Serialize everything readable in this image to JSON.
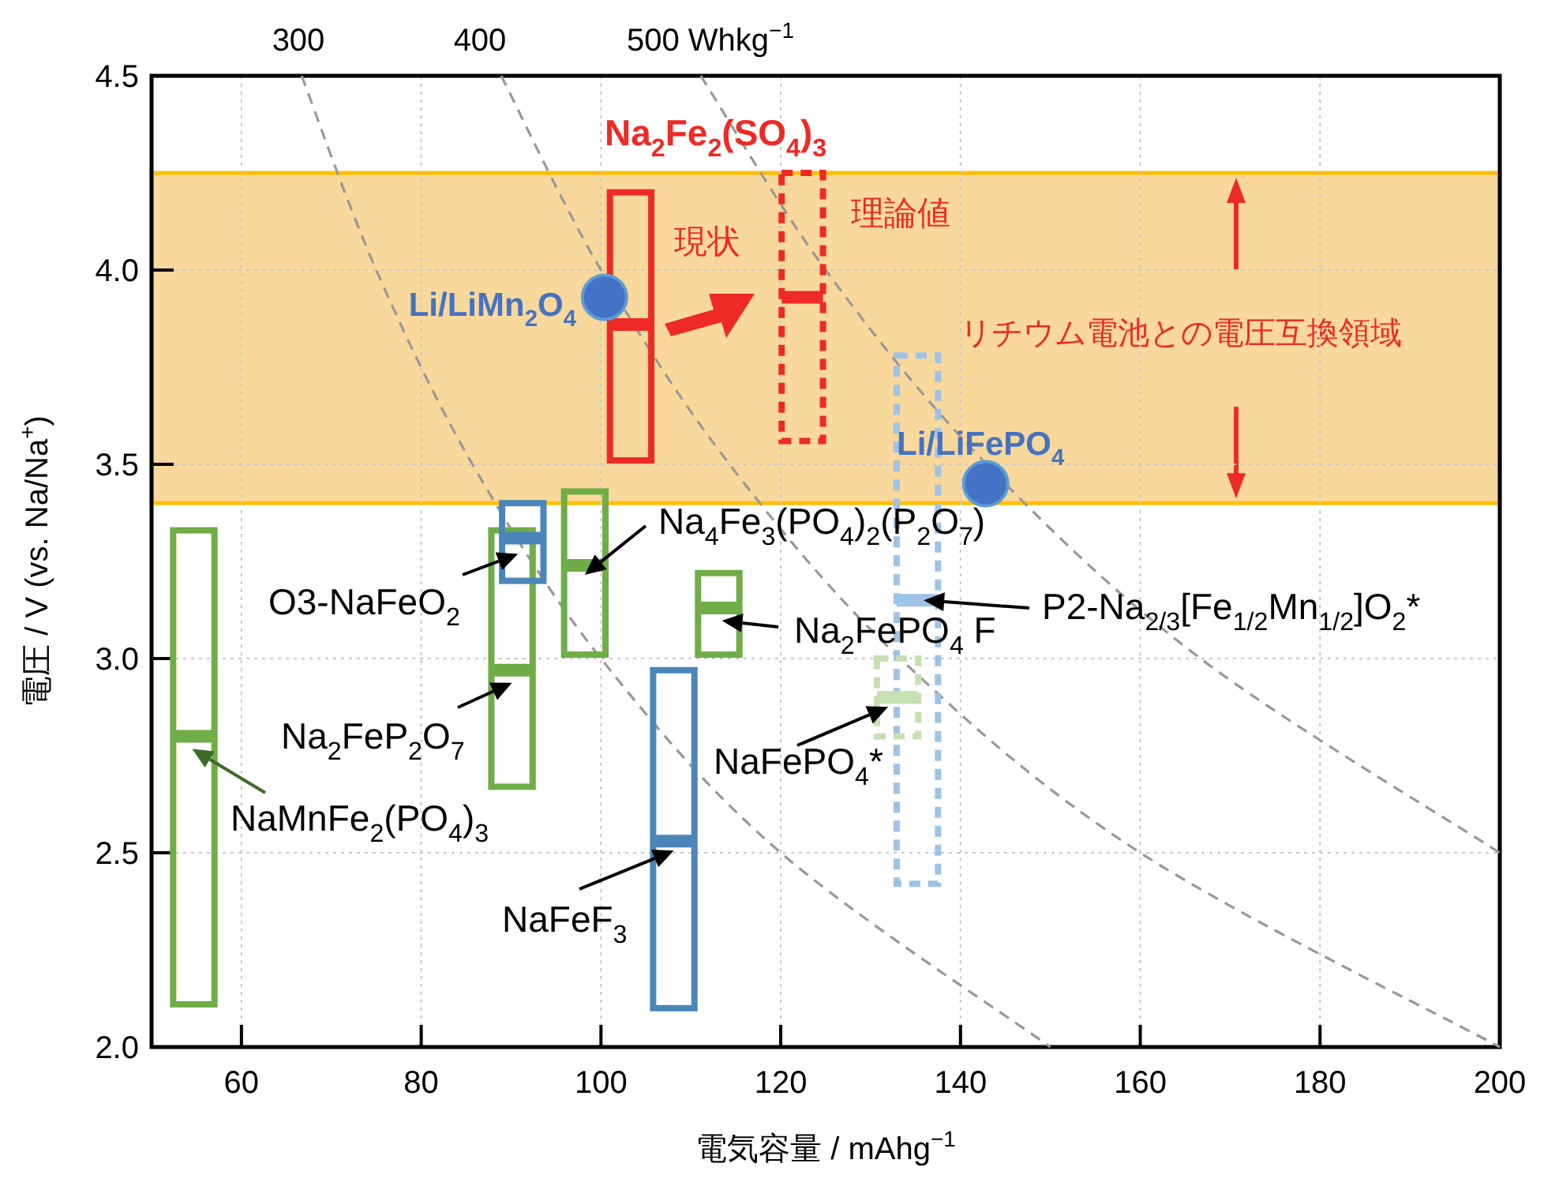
{
  "chart_data": {
    "type": "box",
    "xlabel": "電気容量 / mAhg$^{−1}$",
    "ylabel": "電圧  / V (vs. Na/Na$^{+}$)",
    "xlim": [
      50,
      200
    ],
    "ylim": [
      2.0,
      4.5
    ],
    "xticks": [
      60,
      80,
      100,
      120,
      140,
      160,
      180,
      200
    ],
    "yticks": [
      {
        "value": 2,
        "label": "2.0"
      },
      {
        "value": 2.5,
        "label": "2.5"
      },
      {
        "value": 3,
        "label": "3.0"
      },
      {
        "value": 3.5,
        "label": "3.5"
      },
      {
        "value": 4,
        "label": "4.0"
      },
      {
        "value": 4.5,
        "label": "4.5"
      }
    ],
    "grid": true,
    "bands": [
      {
        "axis": "y",
        "from": 3.4,
        "to": 4.25,
        "label": "リチウム電池との電圧互換領域",
        "color": "#f9d89b"
      }
    ],
    "annotations": [
      "Na$_{2}$Fe$_{2}$(SO$_{4}$)$_{3}$"
    ],
    "series": [
      {
        "type": "line",
        "name": "300",
        "color": "#999999",
        "line_style": "dashed",
        "marker": "none",
        "x": [
          66.7,
          75,
          85.7,
          100,
          120,
          150
        ],
        "values": [
          4.5,
          4.0,
          3.5,
          3.0,
          2.5,
          2.0
        ]
      },
      {
        "type": "line",
        "name": "400",
        "color": "#999999",
        "line_style": "dashed",
        "marker": "none",
        "x": [
          88.9,
          100,
          114.3,
          133.3,
          160,
          200
        ],
        "values": [
          4.5,
          4.0,
          3.5,
          3.0,
          2.5,
          2.0
        ]
      },
      {
        "type": "line",
        "name": "500 Whkg$^{−1}$",
        "color": "#999999",
        "line_style": "dashed",
        "marker": "none",
        "x": [
          111.1,
          125,
          142.9,
          166.7,
          200
        ],
        "values": [
          4.5,
          4.0,
          3.5,
          3.0,
          2.5
        ]
      },
      {
        "type": "box",
        "name": "NaMnFe$_{2}$(PO$_{4}$)$_{3}$",
        "color": "#70ad47",
        "line_style": "solid",
        "x": [
          54.7
        ],
        "boxes": [
          {
            "low": 2.11,
            "q1": 2.11,
            "median": 2.8,
            "q3": 3.33,
            "high": 3.33
          }
        ]
      },
      {
        "type": "box",
        "name": "Na$_{2}$FeP$_{2}$O$_{7}$",
        "color": "#70ad47",
        "line_style": "solid",
        "x": [
          90.1
        ],
        "boxes": [
          {
            "low": 2.67,
            "q1": 2.67,
            "median": 2.97,
            "q3": 3.33,
            "high": 3.33
          }
        ]
      },
      {
        "type": "box",
        "name": "O3-NaFeO$_{2}$",
        "color": "#4a86b8",
        "line_style": "solid",
        "x": [
          91.3
        ],
        "boxes": [
          {
            "low": 3.2,
            "q1": 3.2,
            "median": 3.31,
            "q3": 3.4,
            "high": 3.4
          }
        ]
      },
      {
        "type": "box",
        "name": "Na$_{4}$Fe$_{3}$(PO$_{4}$)$_{2}$(P$_{2}$O$_{7}$)",
        "color": "#70ad47",
        "line_style": "solid",
        "x": [
          98.2
        ],
        "boxes": [
          {
            "low": 3.01,
            "q1": 3.01,
            "median": 3.24,
            "q3": 3.43,
            "high": 3.43
          }
        ]
      },
      {
        "type": "box",
        "name": "Na$_{2}$FePO$_{4}$ F",
        "color": "#70ad47",
        "line_style": "solid",
        "x": [
          113.1
        ],
        "boxes": [
          {
            "low": 3.01,
            "q1": 3.01,
            "median": 3.13,
            "q3": 3.22,
            "high": 3.22
          }
        ]
      },
      {
        "type": "box",
        "name": "NaFeF$_{3}$",
        "color": "#4a86b8",
        "line_style": "solid",
        "x": [
          108.1
        ],
        "boxes": [
          {
            "low": 2.1,
            "q1": 2.1,
            "median": 2.53,
            "q3": 2.97,
            "high": 2.97
          }
        ]
      },
      {
        "type": "box",
        "name": "現状",
        "color": "#ee2a24",
        "line_style": "solid",
        "x": [
          103.3
        ],
        "boxes": [
          {
            "low": 3.51,
            "q1": 3.51,
            "median": 3.86,
            "q3": 4.2,
            "high": 4.2
          }
        ]
      },
      {
        "type": "box",
        "name": "理論値",
        "color": "#ee2a24",
        "line_style": "dashed",
        "x": [
          122.4
        ],
        "boxes": [
          {
            "low": 3.56,
            "q1": 3.56,
            "median": 3.93,
            "q3": 4.25,
            "high": 4.25
          }
        ]
      },
      {
        "type": "box",
        "name": "P2-Na$_{2/3}$[Fe$_{1/2}$Mn$_{1/2}$]O$_{2}$*",
        "color": "#9dc3e6",
        "line_style": "dashed",
        "x": [
          135.2
        ],
        "boxes": [
          {
            "low": 2.42,
            "q1": 2.42,
            "median": 3.15,
            "q3": 3.78,
            "high": 3.78
          }
        ]
      },
      {
        "type": "box",
        "name": "NaFePO$_{4}$*",
        "color": "#c5e0b4",
        "line_style": "dashed",
        "x": [
          133.0
        ],
        "boxes": [
          {
            "low": 2.8,
            "q1": 2.8,
            "median": 2.9,
            "q3": 3.0,
            "high": 3.0
          }
        ]
      },
      {
        "type": "scatter",
        "name": "Li/LiMn$_{2}$O$_{4}$",
        "color": "#4472c4",
        "marker": "circle",
        "x": [
          100.4
        ],
        "values": [
          3.93
        ]
      },
      {
        "type": "scatter",
        "name": "Li/LiFePO$_{4}$",
        "color": "#4472c4",
        "marker": "circle",
        "x": [
          142.8
        ],
        "values": [
          3.45
        ]
      }
    ]
  }
}
